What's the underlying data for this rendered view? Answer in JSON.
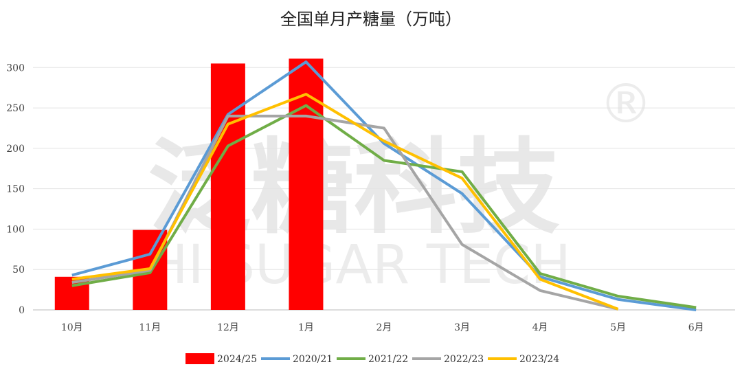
{
  "chart_data": {
    "type": "bar+line",
    "title": "全国单月产糖量（万吨）",
    "categories": [
      "10月",
      "11月",
      "12月",
      "1月",
      "2月",
      "3月",
      "4月",
      "5月",
      "6月"
    ],
    "ylim": [
      0,
      350
    ],
    "yticks": [
      0,
      50,
      100,
      150,
      200,
      250,
      300
    ],
    "grid": true,
    "legend_position": "bottom",
    "series": [
      {
        "name": "2024/25",
        "kind": "bar",
        "color": "#ff0000",
        "values": [
          41,
          99,
          305,
          311,
          null,
          null,
          null,
          null,
          null
        ]
      },
      {
        "name": "2020/21",
        "kind": "line",
        "color": "#5b9bd5",
        "values": [
          43,
          69,
          242,
          307,
          206,
          144,
          41,
          13,
          0
        ]
      },
      {
        "name": "2021/22",
        "kind": "line",
        "color": "#70ad47",
        "values": [
          30,
          46,
          203,
          253,
          185,
          171,
          45,
          17,
          3
        ]
      },
      {
        "name": "2022/23",
        "kind": "line",
        "color": "#a5a5a5",
        "values": [
          34,
          49,
          240,
          240,
          225,
          81,
          24,
          1,
          null
        ]
      },
      {
        "name": "2023/24",
        "kind": "line",
        "color": "#ffc000",
        "values": [
          38,
          51,
          230,
          267,
          209,
          163,
          38,
          1,
          null
        ]
      }
    ]
  },
  "watermark": {
    "cn": "泛糖科技",
    "en": "HI SUGAR TECH",
    "mark": "®"
  }
}
